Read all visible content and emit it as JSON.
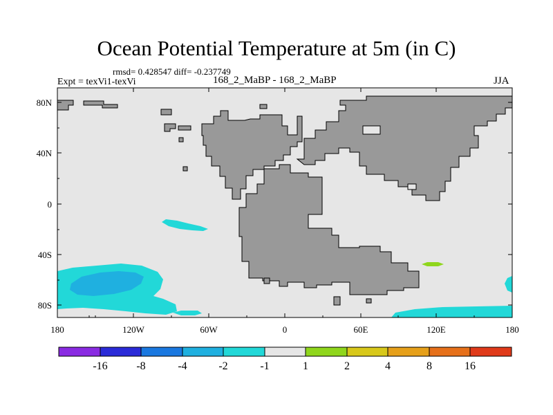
{
  "figure": {
    "title": "Ocean Potential Temperature at 5m (in C)",
    "stats": "rmsd= 0.428547 diff= -0.237749",
    "experiment": "Expt = texVi1-texVi",
    "subtitle": "168_2_MaBP - 168_2_MaBP",
    "season": "JJA"
  },
  "map": {
    "lon_labels": [
      "180",
      "120W",
      "60W",
      "0",
      "60E",
      "120E",
      "180"
    ],
    "lat_labels": [
      "80N",
      "40N",
      "0",
      "40S",
      "80S"
    ],
    "colors": {
      "ocean_neutral": "#e6e6e6",
      "land": "#999999"
    }
  },
  "colorbar": {
    "labels": [
      "-16",
      "-8",
      "-4",
      "-2",
      "-1",
      "1",
      "2",
      "4",
      "8",
      "16"
    ],
    "colors": [
      "#8a2be2",
      "#2b2bd8",
      "#1a78e0",
      "#1fb0e0",
      "#22d8d8",
      "#e6e6e6",
      "#8fd61c",
      "#d8c81a",
      "#e6a01a",
      "#e6701a",
      "#e03a1a"
    ]
  }
}
